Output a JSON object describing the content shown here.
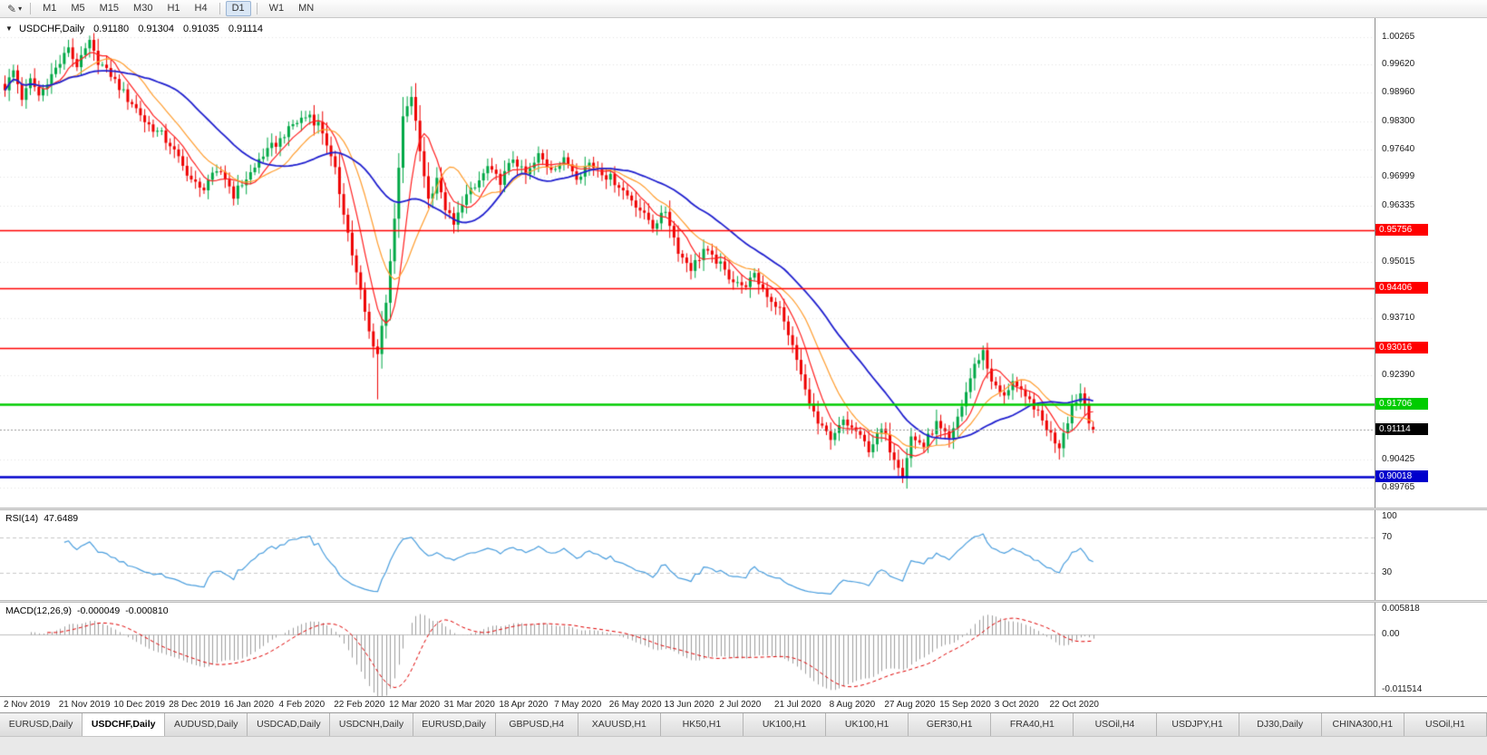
{
  "toolbar": {
    "timeframe_groups": [
      [
        "M1",
        "M5",
        "M15",
        "M30",
        "H1",
        "H4"
      ],
      [
        "D1"
      ],
      [
        "W1",
        "MN"
      ]
    ],
    "active_timeframe": "D1"
  },
  "chart_data": {
    "type": "candlestick",
    "symbol": "USDCHF",
    "timeframe": "Daily",
    "title": {
      "symbol": "USDCHF,Daily",
      "open": "0.91180",
      "high": "0.91304",
      "low": "0.91035",
      "close": "0.91114"
    },
    "candle_count": 258,
    "visible_price_range": [
      0.893,
      1.007
    ],
    "price_axis_labels": [
      "1.00265",
      "0.99620",
      "0.98960",
      "0.98300",
      "0.97640",
      "0.96999",
      "0.96335",
      "0.95015",
      "0.93710",
      "0.92390",
      "0.90425",
      "0.89765"
    ],
    "time_axis_labels": [
      "2 Nov 2019",
      "21 Nov 2019",
      "10 Dec 2019",
      "28 Dec 2019",
      "16 Jan 2020",
      "4 Feb 2020",
      "22 Feb 2020",
      "12 Mar 2020",
      "31 Mar 2020",
      "18 Apr 2020",
      "7 May 2020",
      "26 May 2020",
      "13 Jun 2020",
      "2 Jul 2020",
      "21 Jul 2020",
      "8 Aug 2020",
      "27 Aug 2020",
      "15 Sep 2020",
      "3 Oct 2020",
      "22 Oct 2020"
    ],
    "candle_colors": {
      "up": "#00a846",
      "down": "#ee0000"
    },
    "grid_color": "#e4e4e4",
    "last_candle": {
      "open": 0.9118,
      "high": 0.91304,
      "low": 0.91035,
      "close": 0.91114
    },
    "price_anchors": [
      [
        0,
        0.9905
      ],
      [
        2,
        0.9945
      ],
      [
        4,
        0.9885
      ],
      [
        6,
        0.9922
      ],
      [
        8,
        0.989
      ],
      [
        10,
        0.9925
      ],
      [
        13,
        0.9968
      ],
      [
        15,
        1.0002
      ],
      [
        17,
        0.9958
      ],
      [
        20,
        1.0012
      ],
      [
        22,
        0.9968
      ],
      [
        25,
        0.9935
      ],
      [
        28,
        0.9895
      ],
      [
        31,
        0.986
      ],
      [
        34,
        0.982
      ],
      [
        37,
        0.98
      ],
      [
        40,
        0.9758
      ],
      [
        43,
        0.9712
      ],
      [
        46,
        0.9668
      ],
      [
        48,
        0.9692
      ],
      [
        51,
        0.9715
      ],
      [
        54,
        0.966
      ],
      [
        57,
        0.9695
      ],
      [
        60,
        0.9738
      ],
      [
        63,
        0.977
      ],
      [
        66,
        0.98
      ],
      [
        69,
        0.9828
      ],
      [
        72,
        0.9845
      ],
      [
        75,
        0.9808
      ],
      [
        78,
        0.9712
      ],
      [
        81,
        0.957
      ],
      [
        84,
        0.943
      ],
      [
        86,
        0.934
      ],
      [
        88,
        0.9285
      ],
      [
        90,
        0.9415
      ],
      [
        92,
        0.9595
      ],
      [
        94,
        0.984
      ],
      [
        96,
        0.9885
      ],
      [
        98,
        0.9758
      ],
      [
        100,
        0.9648
      ],
      [
        102,
        0.9698
      ],
      [
        104,
        0.9625
      ],
      [
        106,
        0.9585
      ],
      [
        108,
        0.964
      ],
      [
        111,
        0.9678
      ],
      [
        114,
        0.972
      ],
      [
        117,
        0.9694
      ],
      [
        120,
        0.974
      ],
      [
        123,
        0.9705
      ],
      [
        126,
        0.9748
      ],
      [
        129,
        0.972
      ],
      [
        132,
        0.9742
      ],
      [
        135,
        0.9705
      ],
      [
        138,
        0.973
      ],
      [
        141,
        0.9712
      ],
      [
        144,
        0.969
      ],
      [
        147,
        0.9655
      ],
      [
        150,
        0.9625
      ],
      [
        153,
        0.9585
      ],
      [
        156,
        0.962
      ],
      [
        159,
        0.9525
      ],
      [
        162,
        0.9485
      ],
      [
        165,
        0.953
      ],
      [
        168,
        0.9505
      ],
      [
        171,
        0.9472
      ],
      [
        174,
        0.9445
      ],
      [
        177,
        0.9465
      ],
      [
        180,
        0.9425
      ],
      [
        183,
        0.9392
      ],
      [
        186,
        0.9305
      ],
      [
        189,
        0.9205
      ],
      [
        192,
        0.9125
      ],
      [
        195,
        0.9085
      ],
      [
        198,
        0.9132
      ],
      [
        201,
        0.9105
      ],
      [
        204,
        0.9065
      ],
      [
        207,
        0.9112
      ],
      [
        210,
        0.9045
      ],
      [
        212,
        0.9008
      ],
      [
        214,
        0.9092
      ],
      [
        217,
        0.9075
      ],
      [
        220,
        0.9122
      ],
      [
        223,
        0.9085
      ],
      [
        226,
        0.9165
      ],
      [
        229,
        0.9262
      ],
      [
        231,
        0.9292
      ],
      [
        233,
        0.9225
      ],
      [
        236,
        0.9185
      ],
      [
        238,
        0.9232
      ],
      [
        240,
        0.9195
      ],
      [
        243,
        0.9165
      ],
      [
        246,
        0.9115
      ],
      [
        249,
        0.9075
      ],
      [
        252,
        0.9165
      ],
      [
        254,
        0.92
      ],
      [
        256,
        0.9138
      ],
      [
        257,
        0.91114
      ]
    ],
    "wick_overrides": [
      [
        20,
        "high",
        1.00235
      ],
      [
        88,
        "low",
        0.9182
      ],
      [
        96,
        "high",
        0.99055
      ],
      [
        212,
        "low",
        0.89977
      ],
      [
        249,
        "low",
        0.9042
      ],
      [
        254,
        "high",
        0.9219
      ]
    ],
    "moving_averages": [
      {
        "name": "ma-fast",
        "period": 7,
        "color": "#ff2020",
        "width": 1.2
      },
      {
        "name": "ma-medium",
        "period": 14,
        "color": "#ff9d2e",
        "width": 1.2
      },
      {
        "name": "ma-slow",
        "period": 30,
        "color": "#2020cf",
        "width": 1.8
      }
    ],
    "horizontal_levels": [
      {
        "price": 0.95756,
        "label": "0.95756",
        "color": "#ff0000",
        "width": 1.6
      },
      {
        "price": 0.94406,
        "label": "0.94406",
        "color": "#ff0000",
        "width": 1.6
      },
      {
        "price": 0.93016,
        "label": "0.93016",
        "color": "#ff0000",
        "width": 1.6
      },
      {
        "price": 0.91706,
        "label": "0.91706",
        "color": "#00cc00",
        "width": 2.6
      },
      {
        "price": 0.90018,
        "label": "0.90018",
        "color": "#0000cc",
        "width": 2.6
      }
    ],
    "current_price": {
      "value": 0.91114,
      "label": "0.91114",
      "badge_color": "#000000",
      "line_color": "#999999"
    },
    "indicators": {
      "rsi": {
        "label": "RSI(14)",
        "value": "47.6489",
        "period": 14,
        "color": "#4a9ede",
        "levels": [
          70,
          30
        ],
        "axis_labels": [
          "100",
          "70",
          "30"
        ],
        "scale_max": 100,
        "scale_min": 0
      },
      "macd": {
        "label": "MACD(12,26,9)",
        "value_main": "-0.000049",
        "value_signal": "-0.000810",
        "fast": 12,
        "slow": 26,
        "signal": 9,
        "histogram_color": "#9e9e9e",
        "signal_color": "#e00000",
        "axis_max": 0.005818,
        "axis_min": -0.011514,
        "axis_labels": {
          "max": "0.005818",
          "zero": "0.00",
          "min": "-0.011514"
        }
      }
    }
  },
  "tabs": [
    {
      "label": "EURUSD,Daily",
      "active": false
    },
    {
      "label": "USDCHF,Daily",
      "active": true
    },
    {
      "label": "AUDUSD,Daily",
      "active": false
    },
    {
      "label": "USDCAD,Daily",
      "active": false
    },
    {
      "label": "USDCNH,Daily",
      "active": false
    },
    {
      "label": "EURUSD,Daily",
      "active": false
    },
    {
      "label": "GBPUSD,H4",
      "active": false
    },
    {
      "label": "XAUUSD,H1",
      "active": false
    },
    {
      "label": "HK50,H1",
      "active": false
    },
    {
      "label": "UK100,H1",
      "active": false
    },
    {
      "label": "UK100,H1",
      "active": false
    },
    {
      "label": "GER30,H1",
      "active": false
    },
    {
      "label": "FRA40,H1",
      "active": false
    },
    {
      "label": "USOil,H4",
      "active": false
    },
    {
      "label": "USDJPY,H1",
      "active": false
    },
    {
      "label": "DJ30,Daily",
      "active": false
    },
    {
      "label": "CHINA300,H1",
      "active": false
    },
    {
      "label": "USOil,H1",
      "active": false
    }
  ]
}
